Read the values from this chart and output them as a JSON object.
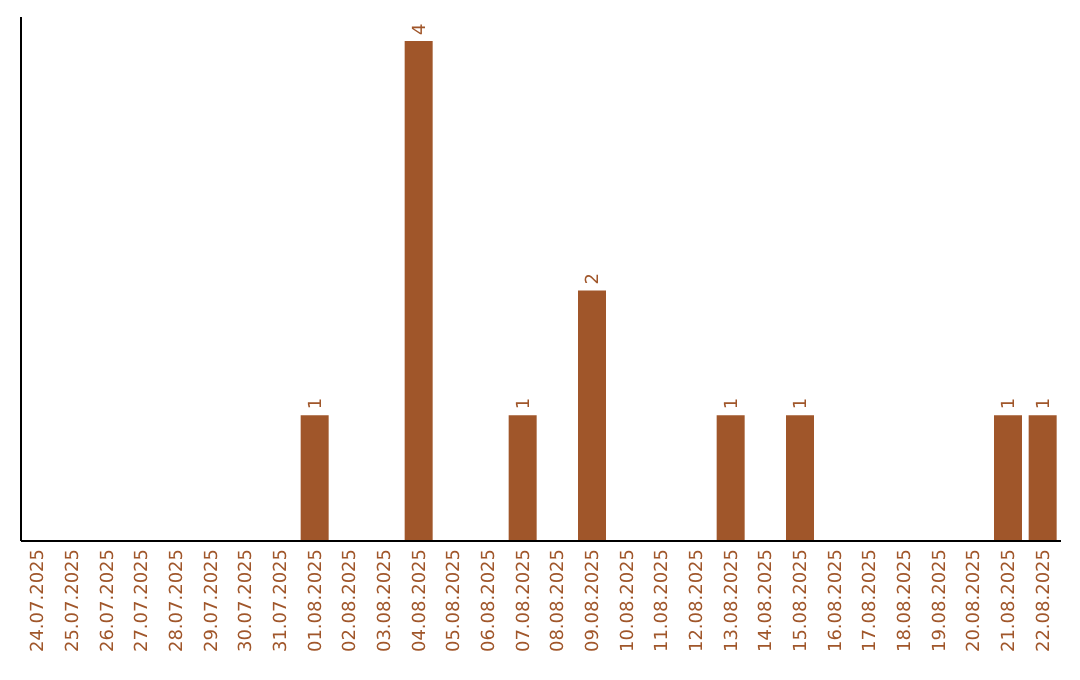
{
  "chart_data": {
    "type": "bar",
    "categories": [
      "24.07.2025",
      "25.07.2025",
      "26.07.2025",
      "27.07.2025",
      "28.07.2025",
      "29.07.2025",
      "30.07.2025",
      "31.07.2025",
      "01.08.2025",
      "02.08.2025",
      "03.08.2025",
      "04.08.2025",
      "05.08.2025",
      "06.08.2025",
      "07.08.2025",
      "08.08.2025",
      "09.08.2025",
      "10.08.2025",
      "11.08.2025",
      "12.08.2025",
      "13.08.2025",
      "14.08.2025",
      "15.08.2025",
      "16.08.2025",
      "17.08.2025",
      "18.08.2025",
      "19.08.2025",
      "20.08.2025",
      "21.08.2025",
      "22.08.2025"
    ],
    "values": [
      0,
      0,
      0,
      0,
      0,
      0,
      0,
      0,
      1,
      0,
      0,
      4,
      0,
      0,
      1,
      0,
      2,
      0,
      0,
      0,
      1,
      0,
      1,
      0,
      0,
      0,
      0,
      0,
      1,
      1
    ],
    "value_labels": [
      null,
      null,
      null,
      null,
      null,
      null,
      null,
      null,
      "1",
      null,
      null,
      "4",
      null,
      null,
      "1",
      null,
      "2",
      null,
      null,
      null,
      "1",
      null,
      "1",
      null,
      null,
      null,
      null,
      null,
      "1",
      "1"
    ],
    "color": "#a0562a",
    "ylim": [
      0,
      4.2
    ],
    "tick_labels": "x",
    "grid": false
  }
}
